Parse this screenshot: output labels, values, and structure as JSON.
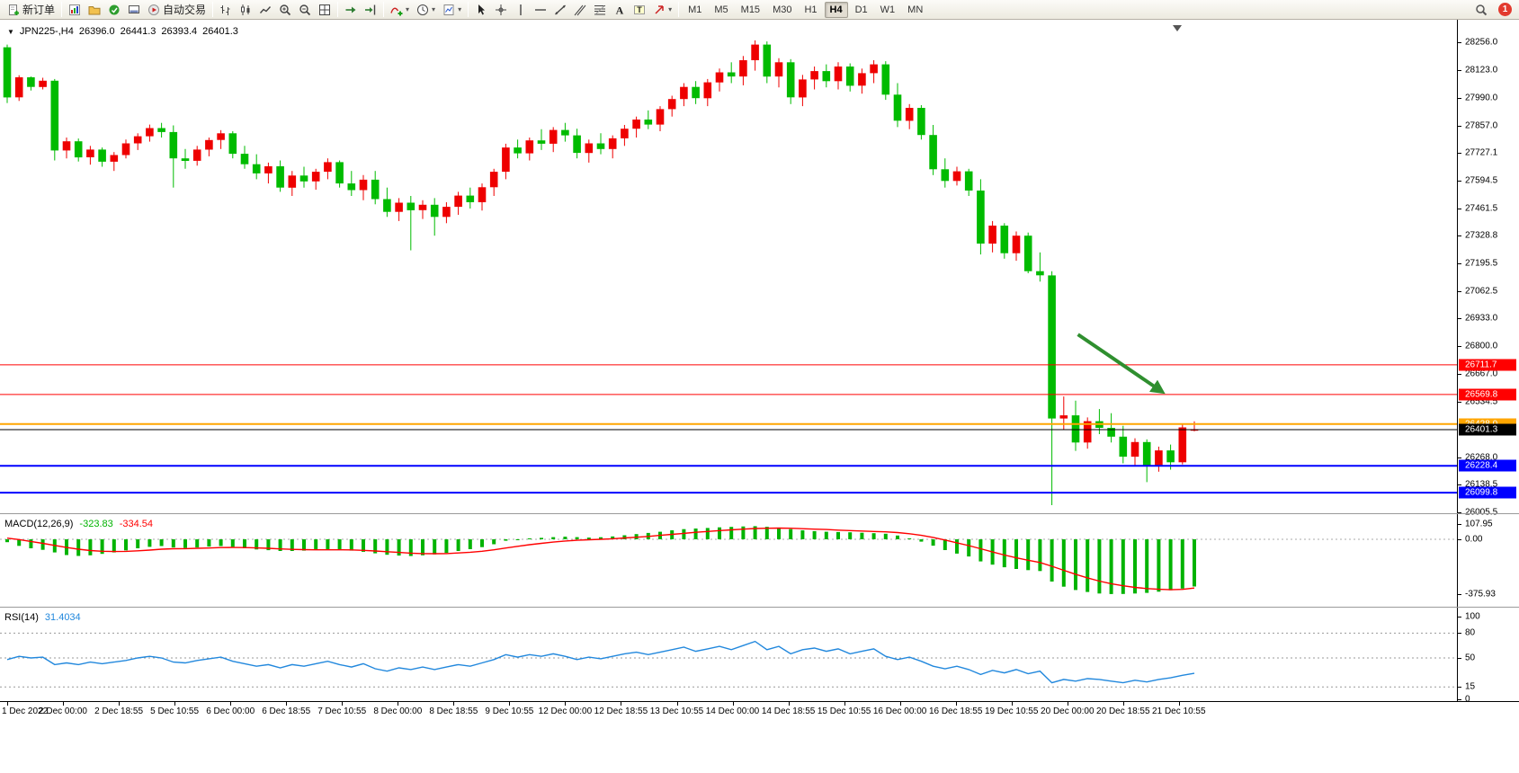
{
  "toolbar": {
    "buttons": [
      {
        "kind": "labeled",
        "name": "new-order",
        "icon": "new-order",
        "label": "新订单"
      },
      {
        "kind": "sep"
      },
      {
        "kind": "icon",
        "name": "new-chart",
        "icon": "new-chart"
      },
      {
        "kind": "icon",
        "name": "profiles",
        "icon": "profiles"
      },
      {
        "kind": "icon",
        "name": "market-watch",
        "icon": "market-watch"
      },
      {
        "kind": "icon",
        "name": "terminal",
        "icon": "terminal"
      },
      {
        "kind": "labeled",
        "name": "autotrading",
        "icon": "autotrading",
        "label": "自动交易"
      },
      {
        "kind": "sep"
      },
      {
        "kind": "icon",
        "name": "bar-chart",
        "icon": "bar-chart"
      },
      {
        "kind": "icon",
        "name": "candlestick-chart",
        "icon": "candlestick"
      },
      {
        "kind": "icon",
        "name": "line-chart",
        "icon": "line-chart"
      },
      {
        "kind": "icon",
        "name": "zoom-in",
        "icon": "zoom-in"
      },
      {
        "kind": "icon",
        "name": "zoom-out",
        "icon": "zoom-out"
      },
      {
        "kind": "icon",
        "name": "tile-windows",
        "icon": "tile-windows"
      },
      {
        "kind": "sep"
      },
      {
        "kind": "icon",
        "name": "auto-scroll",
        "icon": "auto-scroll"
      },
      {
        "kind": "icon",
        "name": "chart-shift",
        "icon": "chart-shift"
      },
      {
        "kind": "sep"
      },
      {
        "kind": "icon",
        "name": "indicators",
        "icon": "indicators",
        "caret": true
      },
      {
        "kind": "icon",
        "name": "periods",
        "icon": "periods",
        "caret": true
      },
      {
        "kind": "icon",
        "name": "templates",
        "icon": "templates",
        "caret": true
      },
      {
        "kind": "sep"
      },
      {
        "kind": "icon",
        "name": "cursor",
        "icon": "cursor"
      },
      {
        "kind": "icon",
        "name": "crosshair",
        "icon": "crosshair"
      },
      {
        "kind": "icon",
        "name": "vertical-line",
        "icon": "vertical-line"
      },
      {
        "kind": "icon",
        "name": "horizontal-line",
        "icon": "horizontal-line"
      },
      {
        "kind": "icon",
        "name": "trendline",
        "icon": "trendline"
      },
      {
        "kind": "icon",
        "name": "equidistant-channel",
        "icon": "channel"
      },
      {
        "kind": "icon",
        "name": "fibonacci",
        "icon": "fibonacci"
      },
      {
        "kind": "icon",
        "name": "text",
        "icon": "text"
      },
      {
        "kind": "icon",
        "name": "text-label",
        "icon": "text-label"
      },
      {
        "kind": "icon",
        "name": "arrows",
        "icon": "arrows",
        "caret": true
      },
      {
        "kind": "sep"
      },
      {
        "kind": "tf",
        "label": "M1",
        "active": false
      },
      {
        "kind": "tf",
        "label": "M5",
        "active": false
      },
      {
        "kind": "tf",
        "label": "M15",
        "active": false
      },
      {
        "kind": "tf",
        "label": "M30",
        "active": false
      },
      {
        "kind": "tf",
        "label": "H1",
        "active": false
      },
      {
        "kind": "tf",
        "label": "H4",
        "active": true
      },
      {
        "kind": "tf",
        "label": "D1",
        "active": false
      },
      {
        "kind": "tf",
        "label": "W1",
        "active": false
      },
      {
        "kind": "tf",
        "label": "MN",
        "active": false
      }
    ],
    "right": {
      "notification_count": "1"
    }
  },
  "chart": {
    "header": {
      "symbol_period": "JPN225-,H4",
      "open": "26396.0",
      "high": "26441.3",
      "low": "26393.4",
      "close": "26401.3"
    },
    "price_axis_labels": [
      "28256.0",
      "28123.0",
      "27990.0",
      "27857.0",
      "27727.1",
      "27594.5",
      "27461.5",
      "27328.8",
      "27195.5",
      "27062.5",
      "26933.0",
      "26800.0",
      "26667.0",
      "26534.5",
      "26268.0",
      "26138.5",
      "26005.5"
    ]
  },
  "macd_panel": {
    "title": "MACD(12,26,9)",
    "value_main": "-323.83",
    "value_signal": "-334.54",
    "axis_labels": [
      "107.95",
      "0.00",
      "-375.93"
    ],
    "colors": {
      "histogram": "#00b300",
      "signal": "#ff0000"
    }
  },
  "rsi_panel": {
    "title": "RSI(14)",
    "value": "31.4034",
    "axis_labels": [
      "100",
      "80",
      "50",
      "15",
      "0"
    ],
    "color": "#2288dd"
  },
  "chart_data": {
    "type": "candlestick",
    "symbol": "JPN225-",
    "timeframe": "H4",
    "title": "JPN225-,H4 26396.0 26441.3 26393.4 26401.3",
    "price_range": [
      26005.5,
      28256.0
    ],
    "up_color": "#ee0000",
    "down_color": "#00bb00",
    "candles": [
      [
        28232,
        28245,
        27965,
        27992
      ],
      [
        27992,
        28098,
        27975,
        28088
      ],
      [
        28088,
        28092,
        28025,
        28042
      ],
      [
        28042,
        28086,
        28030,
        28072
      ],
      [
        28072,
        28080,
        27690,
        27738
      ],
      [
        27738,
        27800,
        27700,
        27782
      ],
      [
        27782,
        27795,
        27685,
        27705
      ],
      [
        27705,
        27760,
        27670,
        27742
      ],
      [
        27742,
        27752,
        27660,
        27684
      ],
      [
        27684,
        27730,
        27640,
        27716
      ],
      [
        27716,
        27790,
        27700,
        27772
      ],
      [
        27772,
        27820,
        27740,
        27806
      ],
      [
        27806,
        27862,
        27780,
        27845
      ],
      [
        27845,
        27870,
        27800,
        27826
      ],
      [
        27826,
        27858,
        27560,
        27700
      ],
      [
        27700,
        27745,
        27650,
        27688
      ],
      [
        27688,
        27760,
        27665,
        27742
      ],
      [
        27742,
        27800,
        27710,
        27788
      ],
      [
        27788,
        27835,
        27745,
        27820
      ],
      [
        27820,
        27830,
        27700,
        27722
      ],
      [
        27722,
        27760,
        27650,
        27672
      ],
      [
        27672,
        27720,
        27600,
        27628
      ],
      [
        27628,
        27680,
        27580,
        27662
      ],
      [
        27662,
        27690,
        27540,
        27560
      ],
      [
        27560,
        27640,
        27520,
        27618
      ],
      [
        27618,
        27660,
        27560,
        27590
      ],
      [
        27590,
        27650,
        27550,
        27636
      ],
      [
        27636,
        27700,
        27600,
        27682
      ],
      [
        27682,
        27690,
        27560,
        27580
      ],
      [
        27580,
        27640,
        27520,
        27548
      ],
      [
        27548,
        27620,
        27500,
        27598
      ],
      [
        27598,
        27640,
        27480,
        27505
      ],
      [
        27505,
        27560,
        27420,
        27444
      ],
      [
        27444,
        27510,
        27400,
        27488
      ],
      [
        27488,
        27520,
        27260,
        27452
      ],
      [
        27452,
        27500,
        27410,
        27478
      ],
      [
        27478,
        27510,
        27330,
        27420
      ],
      [
        27420,
        27490,
        27390,
        27468
      ],
      [
        27468,
        27540,
        27430,
        27522
      ],
      [
        27522,
        27560,
        27460,
        27490
      ],
      [
        27490,
        27580,
        27450,
        27562
      ],
      [
        27562,
        27650,
        27520,
        27636
      ],
      [
        27636,
        27770,
        27600,
        27752
      ],
      [
        27752,
        27790,
        27700,
        27724
      ],
      [
        27724,
        27800,
        27690,
        27786
      ],
      [
        27786,
        27840,
        27740,
        27770
      ],
      [
        27770,
        27850,
        27730,
        27836
      ],
      [
        27836,
        27870,
        27780,
        27810
      ],
      [
        27810,
        27842,
        27700,
        27726
      ],
      [
        27726,
        27790,
        27680,
        27772
      ],
      [
        27772,
        27820,
        27720,
        27745
      ],
      [
        27745,
        27810,
        27700,
        27796
      ],
      [
        27796,
        27860,
        27760,
        27842
      ],
      [
        27842,
        27900,
        27800,
        27886
      ],
      [
        27886,
        27930,
        27840,
        27862
      ],
      [
        27862,
        27950,
        27830,
        27936
      ],
      [
        27936,
        28000,
        27900,
        27984
      ],
      [
        27984,
        28060,
        27950,
        28042
      ],
      [
        28042,
        28070,
        27960,
        27988
      ],
      [
        27988,
        28080,
        27950,
        28064
      ],
      [
        28064,
        28130,
        28020,
        28112
      ],
      [
        28112,
        28160,
        28060,
        28092
      ],
      [
        28092,
        28190,
        28050,
        28170
      ],
      [
        28170,
        28265,
        28120,
        28245
      ],
      [
        28245,
        28260,
        28060,
        28092
      ],
      [
        28092,
        28180,
        28040,
        28160
      ],
      [
        28160,
        28175,
        27960,
        27992
      ],
      [
        27992,
        28100,
        27950,
        28078
      ],
      [
        28078,
        28140,
        28030,
        28118
      ],
      [
        28118,
        28150,
        28040,
        28070
      ],
      [
        28070,
        28160,
        28030,
        28140
      ],
      [
        28140,
        28155,
        28020,
        28048
      ],
      [
        28048,
        28130,
        28010,
        28108
      ],
      [
        28108,
        28170,
        28060,
        28150
      ],
      [
        28150,
        28165,
        27980,
        28005
      ],
      [
        28005,
        28060,
        27850,
        27880
      ],
      [
        27880,
        27960,
        27840,
        27942
      ],
      [
        27942,
        27955,
        27790,
        27812
      ],
      [
        27812,
        27860,
        27620,
        27648
      ],
      [
        27648,
        27700,
        27560,
        27592
      ],
      [
        27592,
        27660,
        27570,
        27638
      ],
      [
        27638,
        27650,
        27520,
        27546
      ],
      [
        27546,
        27600,
        27240,
        27292
      ],
      [
        27292,
        27400,
        27250,
        27378
      ],
      [
        27378,
        27390,
        27220,
        27246
      ],
      [
        27246,
        27350,
        27210,
        27330
      ],
      [
        27330,
        27345,
        27150,
        27160
      ],
      [
        27160,
        27250,
        27110,
        27140
      ],
      [
        27140,
        27160,
        26040,
        26455
      ],
      [
        26455,
        26560,
        26400,
        26470
      ],
      [
        26470,
        26540,
        26300,
        26340
      ],
      [
        26340,
        26460,
        26310,
        26442
      ],
      [
        26442,
        26500,
        26380,
        26410
      ],
      [
        26410,
        26480,
        26340,
        26368
      ],
      [
        26368,
        26420,
        26240,
        26272
      ],
      [
        26272,
        26360,
        26230,
        26342
      ],
      [
        26342,
        26355,
        26150,
        26228
      ],
      [
        26228,
        26320,
        26200,
        26302
      ],
      [
        26302,
        26330,
        26210,
        26245
      ],
      [
        26245,
        26430,
        26235,
        26412
      ],
      [
        26396,
        26441.3,
        26393.4,
        26401.3
      ]
    ],
    "hlines": [
      {
        "price": 26711.7,
        "label": "26711.7",
        "color": "#ff0000",
        "width": 1
      },
      {
        "price": 26569.8,
        "label": "26569.8",
        "color": "#ff0000",
        "width": 1
      },
      {
        "price": 26428.0,
        "label": "26428.0",
        "color": "#ffa500",
        "width": 2
      },
      {
        "price": 26228.4,
        "label": "26228.4",
        "color": "#0000ff",
        "width": 2
      },
      {
        "price": 26099.8,
        "label": "26099.8",
        "color": "#0000ff",
        "width": 2
      }
    ],
    "bid": {
      "price": 26401.3,
      "label": "26401.3",
      "color": "#000000"
    },
    "annotation": {
      "type": "arrow",
      "color": "#2f8f2f",
      "from": {
        "bar": 90.2,
        "price": 26857
      },
      "to": {
        "bar": 97.3,
        "price": 26582
      }
    },
    "macd": {
      "range": [
        -375.93,
        107.95
      ],
      "histogram": [
        -20,
        -45,
        -62,
        -72,
        -90,
        -108,
        -114,
        -110,
        -100,
        -90,
        -76,
        -62,
        -52,
        -46,
        -56,
        -60,
        -56,
        -50,
        -46,
        -52,
        -62,
        -70,
        -75,
        -80,
        -80,
        -78,
        -74,
        -70,
        -72,
        -78,
        -86,
        -96,
        -106,
        -112,
        -115,
        -110,
        -104,
        -94,
        -80,
        -68,
        -54,
        -34,
        -10,
        0,
        6,
        10,
        15,
        18,
        15,
        12,
        14,
        20,
        28,
        36,
        44,
        52,
        62,
        70,
        74,
        78,
        82,
        85,
        88,
        90,
        86,
        80,
        70,
        62,
        56,
        52,
        50,
        48,
        45,
        42,
        38,
        26,
        6,
        -16,
        -44,
        -74,
        -98,
        -118,
        -152,
        -174,
        -192,
        -204,
        -212,
        -218,
        -290,
        -325,
        -348,
        -362,
        -372,
        -376,
        -375,
        -372,
        -368,
        -360,
        -350,
        -338,
        -323.83
      ],
      "signal": [
        8,
        -2,
        -15,
        -28,
        -42,
        -56,
        -68,
        -77,
        -82,
        -84,
        -83,
        -79,
        -74,
        -68,
        -65,
        -64,
        -62,
        -60,
        -57,
        -56,
        -57,
        -59,
        -62,
        -66,
        -69,
        -71,
        -72,
        -72,
        -72,
        -73,
        -76,
        -80,
        -85,
        -90,
        -95,
        -98,
        -99,
        -98,
        -94,
        -89,
        -82,
        -72,
        -60,
        -48,
        -37,
        -28,
        -19,
        -12,
        -7,
        -3,
        0,
        4,
        9,
        14,
        20,
        27,
        34,
        41,
        48,
        54,
        60,
        65,
        70,
        74,
        76,
        77,
        76,
        73,
        70,
        67,
        63,
        60,
        57,
        54,
        51,
        46,
        38,
        27,
        13,
        -5,
        -24,
        -43,
        -65,
        -87,
        -108,
        -127,
        -144,
        -159,
        -185,
        -213,
        -240,
        -265,
        -287,
        -305,
        -319,
        -330,
        -338,
        -343,
        -346,
        -344,
        -334.54
      ]
    },
    "rsi": {
      "range": [
        0,
        100
      ],
      "levels": [
        80,
        50,
        15
      ],
      "values": [
        48,
        52,
        50,
        51,
        42,
        44,
        42,
        45,
        43,
        45,
        47,
        50,
        52,
        50,
        45,
        44,
        47,
        49,
        51,
        46,
        43,
        40,
        42,
        38,
        42,
        40,
        43,
        46,
        42,
        39,
        43,
        37,
        34,
        38,
        36,
        39,
        36,
        39,
        42,
        40,
        44,
        48,
        54,
        51,
        54,
        52,
        55,
        52,
        48,
        51,
        49,
        52,
        55,
        57,
        54,
        57,
        60,
        63,
        58,
        61,
        64,
        60,
        65,
        70,
        60,
        64,
        55,
        60,
        62,
        58,
        61,
        55,
        58,
        61,
        52,
        48,
        51,
        46,
        40,
        37,
        40,
        36,
        30,
        35,
        32,
        36,
        31,
        34,
        20,
        24,
        22,
        25,
        24,
        22,
        20,
        23,
        21,
        24,
        26,
        29,
        31.4034
      ]
    },
    "x_labels": [
      "1 Dec 2022",
      "2 Dec 00:00",
      "2 Dec 18:55",
      "5 Dec 10:55",
      "6 Dec 00:00",
      "6 Dec 18:55",
      "7 Dec 10:55",
      "8 Dec 00:00",
      "8 Dec 18:55",
      "9 Dec 10:55",
      "12 Dec 00:00",
      "12 Dec 18:55",
      "13 Dec 10:55",
      "14 Dec 00:00",
      "14 Dec 18:55",
      "15 Dec 10:55",
      "16 Dec 00:00",
      "16 Dec 18:55",
      "19 Dec 10:55",
      "20 Dec 00:00",
      "20 Dec 18:55",
      "21 Dec 10:55"
    ]
  }
}
